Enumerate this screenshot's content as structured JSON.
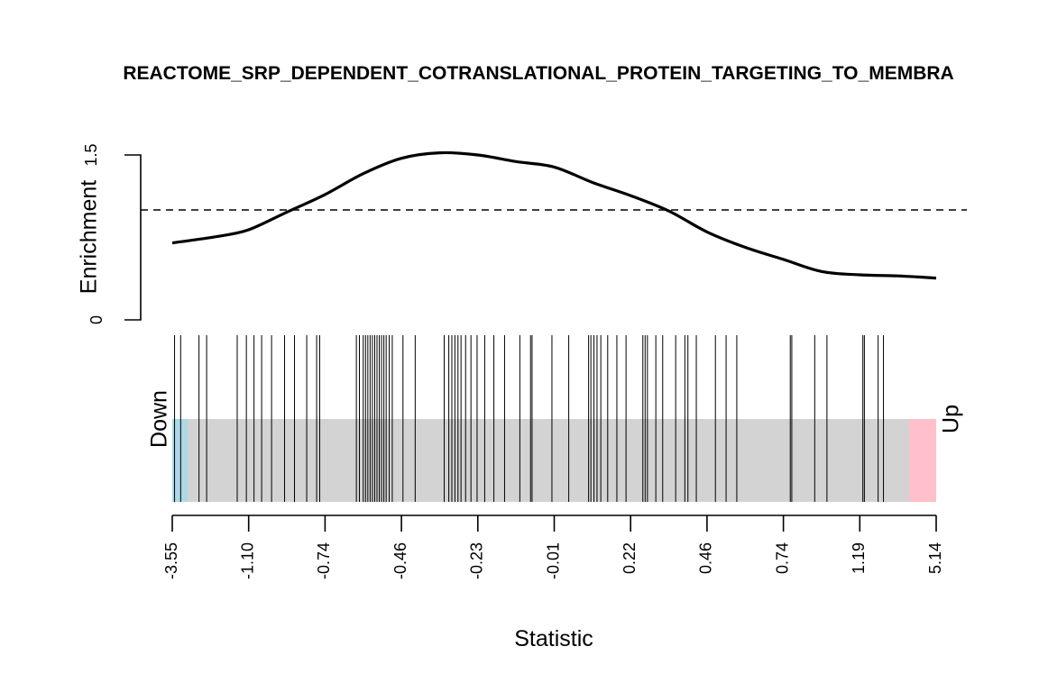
{
  "chart_data": {
    "type": "line",
    "title": "REACTOME_SRP_DEPENDENT_COTRANSLATIONAL_PROTEIN_TARGETING_TO_MEMBRA",
    "xlabel": "Statistic",
    "ylabel": "Enrichment",
    "ylim": [
      0,
      1.5
    ],
    "yticks": [
      "0",
      "1.5"
    ],
    "reference_line": 1,
    "x_tick_labels": [
      "-3.55",
      "-1.10",
      "-0.74",
      "-0.46",
      "-0.23",
      "-0.01",
      "0.22",
      "0.46",
      "0.74",
      "1.19",
      "5.14"
    ],
    "down_label": "Down",
    "up_label": "Up",
    "colors": {
      "curve": "#000000",
      "down_region": "#add8e6",
      "up_region": "#ffc0cb",
      "middle_region": "#d3d3d3"
    },
    "down_region_rank": [
      0,
      0.02
    ],
    "up_region_rank": [
      0.965,
      1
    ],
    "enrichment_curve": {
      "rank": [
        0,
        0.06,
        0.1,
        0.15,
        0.2,
        0.25,
        0.3,
        0.35,
        0.4,
        0.45,
        0.5,
        0.55,
        0.6,
        0.65,
        0.7,
        0.75,
        0.8,
        0.85,
        0.9,
        0.95,
        1
      ],
      "values": [
        0.7,
        0.76,
        0.82,
        0.98,
        1.14,
        1.33,
        1.47,
        1.52,
        1.5,
        1.44,
        1.39,
        1.25,
        1.13,
        0.99,
        0.8,
        0.66,
        0.55,
        0.44,
        0.41,
        0.4,
        0.38
      ]
    },
    "barcode_ranks": [
      0.003,
      0.011,
      0.035,
      0.045,
      0.085,
      0.097,
      0.107,
      0.117,
      0.13,
      0.147,
      0.16,
      0.176,
      0.189,
      0.193,
      0.241,
      0.245,
      0.25,
      0.253,
      0.256,
      0.259,
      0.262,
      0.265,
      0.268,
      0.271,
      0.274,
      0.277,
      0.28,
      0.284,
      0.288,
      0.302,
      0.318,
      0.356,
      0.362,
      0.366,
      0.37,
      0.374,
      0.378,
      0.384,
      0.391,
      0.399,
      0.409,
      0.421,
      0.435,
      0.455,
      0.469,
      0.471,
      0.497,
      0.519,
      0.545,
      0.548,
      0.552,
      0.556,
      0.561,
      0.57,
      0.582,
      0.594,
      0.616,
      0.619,
      0.622,
      0.633,
      0.642,
      0.659,
      0.671,
      0.675,
      0.686,
      0.711,
      0.725,
      0.739,
      0.809,
      0.811,
      0.841,
      0.857,
      0.904,
      0.906,
      0.924,
      0.931
    ]
  }
}
